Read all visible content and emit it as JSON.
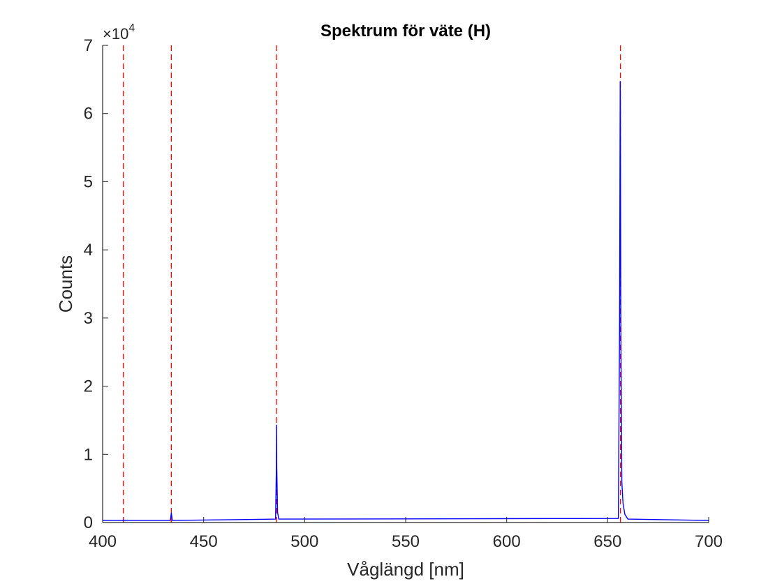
{
  "chart_data": {
    "type": "line",
    "title": "Spektrum för väte (H)",
    "xlabel": "Våglängd [nm]",
    "ylabel": "Counts",
    "xlim": [
      400,
      700
    ],
    "ylim": [
      0,
      70000
    ],
    "xticks": [
      400,
      450,
      500,
      550,
      600,
      650,
      700
    ],
    "yticks": [
      0,
      1,
      2,
      3,
      4,
      5,
      6,
      7
    ],
    "xtick_labels": [
      "400",
      "450",
      "500",
      "550",
      "600",
      "650",
      "700"
    ],
    "ytick_labels": [
      "0",
      "1",
      "2",
      "3",
      "4",
      "5",
      "6",
      "7"
    ],
    "y_exponent": {
      "times": "×10",
      "power": "4"
    },
    "grid": false,
    "series": [
      {
        "color": "#0000ff",
        "style": "solid",
        "x": [
          400,
          410.0,
          410.3,
          410.6,
          433.5,
          434.0,
          434.5,
          485.6,
          486.0,
          486.1,
          486.2,
          486.6,
          487.2,
          655.3,
          655.9,
          656.2,
          656.3,
          656.5,
          657.0,
          657.6,
          658.5,
          660.0,
          700
        ],
        "y": [
          300,
          300,
          400,
          300,
          300,
          1400,
          300,
          500,
          8000,
          14300,
          8000,
          1500,
          500,
          600,
          30000,
          64700,
          60000,
          30000,
          6000,
          2800,
          1200,
          500,
          300
        ]
      }
    ],
    "reference_lines": {
      "orientation": "vertical",
      "color": "#ff0000",
      "style": "dashed",
      "x": [
        410.2,
        434.0,
        486.1,
        656.3
      ]
    }
  }
}
